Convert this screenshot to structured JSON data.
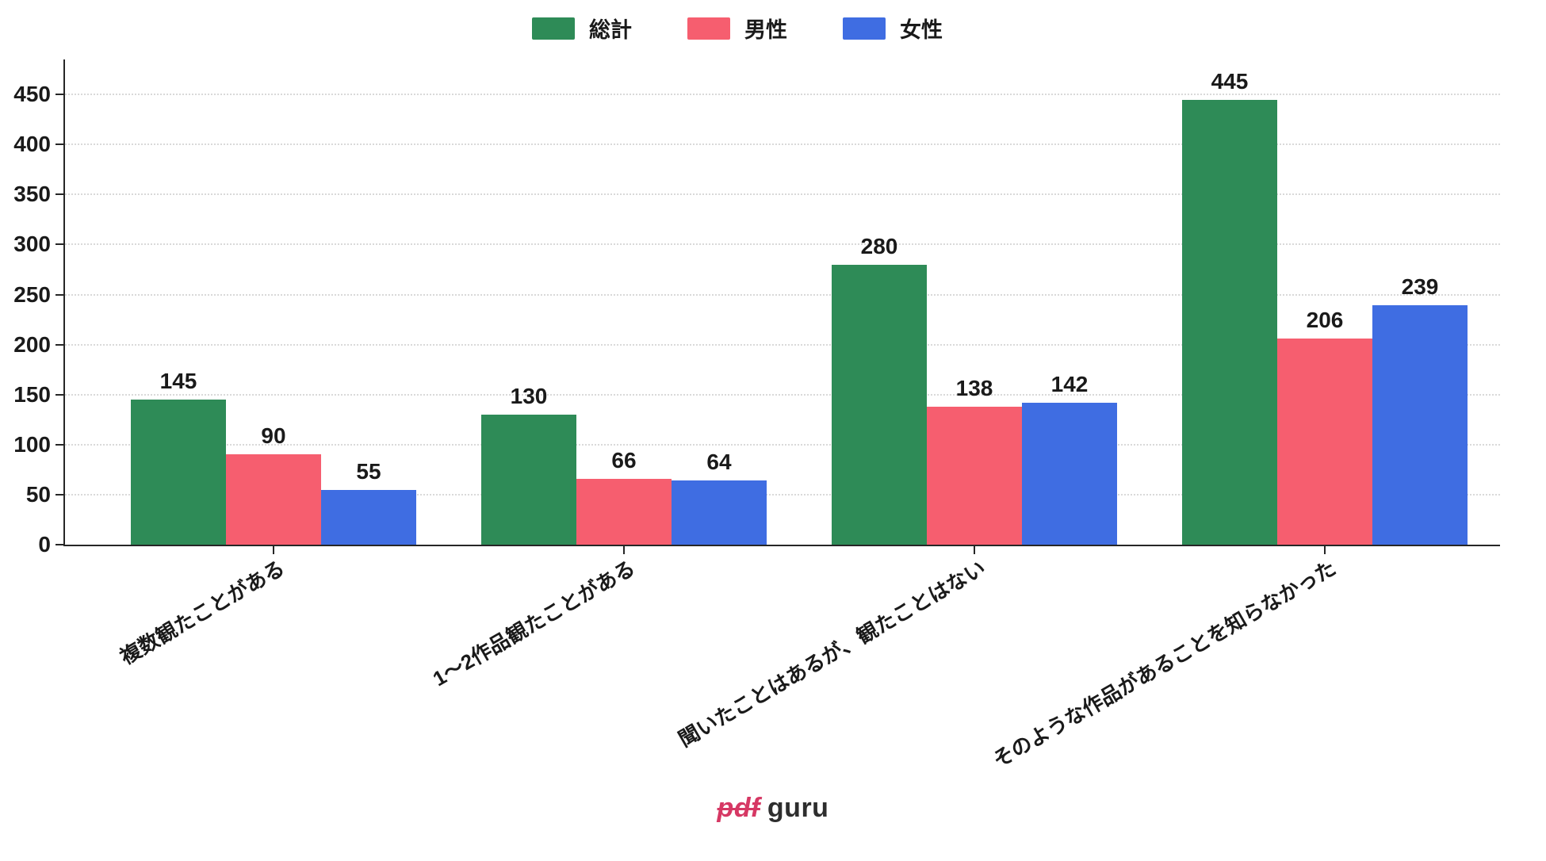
{
  "chart_data": {
    "type": "bar",
    "title": "",
    "xlabel": "",
    "ylabel": "",
    "categories": [
      "複数観たことがある",
      "1〜2作品観たことがある",
      "聞いたことはあるが、観たことはない",
      "そのような作品があることを知らなかった"
    ],
    "series": [
      {
        "name": "総計",
        "color": "#2e8b57",
        "values": [
          145,
          130,
          280,
          445
        ]
      },
      {
        "name": "男性",
        "color": "#f65e6f",
        "values": [
          90,
          66,
          138,
          206
        ]
      },
      {
        "name": "女性",
        "color": "#3f6de2",
        "values": [
          55,
          64,
          142,
          239
        ]
      }
    ],
    "yticks": [
      0,
      50,
      100,
      150,
      200,
      250,
      300,
      350,
      400,
      450
    ],
    "ylim": [
      0,
      485
    ],
    "grid": "horizontal-dotted",
    "grid_color": "#d9d9d9",
    "axis_color": "#262626",
    "legend_position": "top-center",
    "value_labels": true,
    "xtick_rotation_deg": 30
  },
  "footer": {
    "logo_pdf": "pdf",
    "logo_guru": "guru",
    "logo_pdf_color": "#d63864",
    "logo_guru_color": "#2e2e2e"
  }
}
